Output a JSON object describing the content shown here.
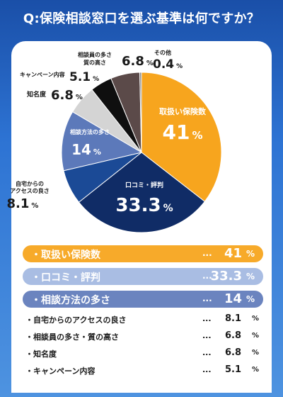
{
  "title": "Q:保険相談窓口を選ぶ基準は何ですか？",
  "chart_data": {
    "type": "pie",
    "slices": [
      {
        "label": "取扱い保険数",
        "value": 41,
        "value_text": "41",
        "color": "#f7a51e"
      },
      {
        "label": "口コミ・評判",
        "value": 33.3,
        "value_text": "33.3",
        "color": "#102c66"
      },
      {
        "label": "自宅からのアクセスの良さ",
        "value": 8.1,
        "value_text": "8.1",
        "color": "#1b4a96"
      },
      {
        "label": "相談方法の多さ",
        "value": 14,
        "value_text": "14",
        "color": "#5c79ba"
      },
      {
        "label": "知名度",
        "value": 6.8,
        "value_text": "6.8",
        "color": "#d4d4d4"
      },
      {
        "label": "キャンペーン内容",
        "value": 5.1,
        "value_text": "5.1",
        "color": "#0f0f0f"
      },
      {
        "label": "相談員の多さ・質の高さ",
        "value": 6.8,
        "value_text": "6.8",
        "color": "#5b4a49"
      },
      {
        "label": "その他",
        "value": 0.4,
        "value_text": "0.4",
        "color": "#7a7a7a"
      }
    ],
    "callout_labels": {
      "aim_lines": [
        "相談員の多さ",
        "質の高さ"
      ],
      "home_lines": [
        "自宅からの",
        "アクセスの良さ"
      ],
      "method_lines": [
        "相談方法の多さ"
      ]
    },
    "unit": "%"
  },
  "ranking": {
    "dots": "...",
    "unit": "%",
    "top": [
      {
        "label": "・取扱い保険数",
        "value": "41"
      },
      {
        "label": "・口コミ・評判",
        "value": "33.3"
      },
      {
        "label": "・相談方法の多さ",
        "value": "14"
      }
    ],
    "rest": [
      {
        "label": "・自宅からのアクセスの良さ",
        "value": "8.1"
      },
      {
        "label": "・相談員の多さ・質の高さ",
        "value": "6.8"
      },
      {
        "label": "・知名度",
        "value": "6.8"
      },
      {
        "label": "・キャンペーン内容",
        "value": "5.1"
      }
    ]
  }
}
